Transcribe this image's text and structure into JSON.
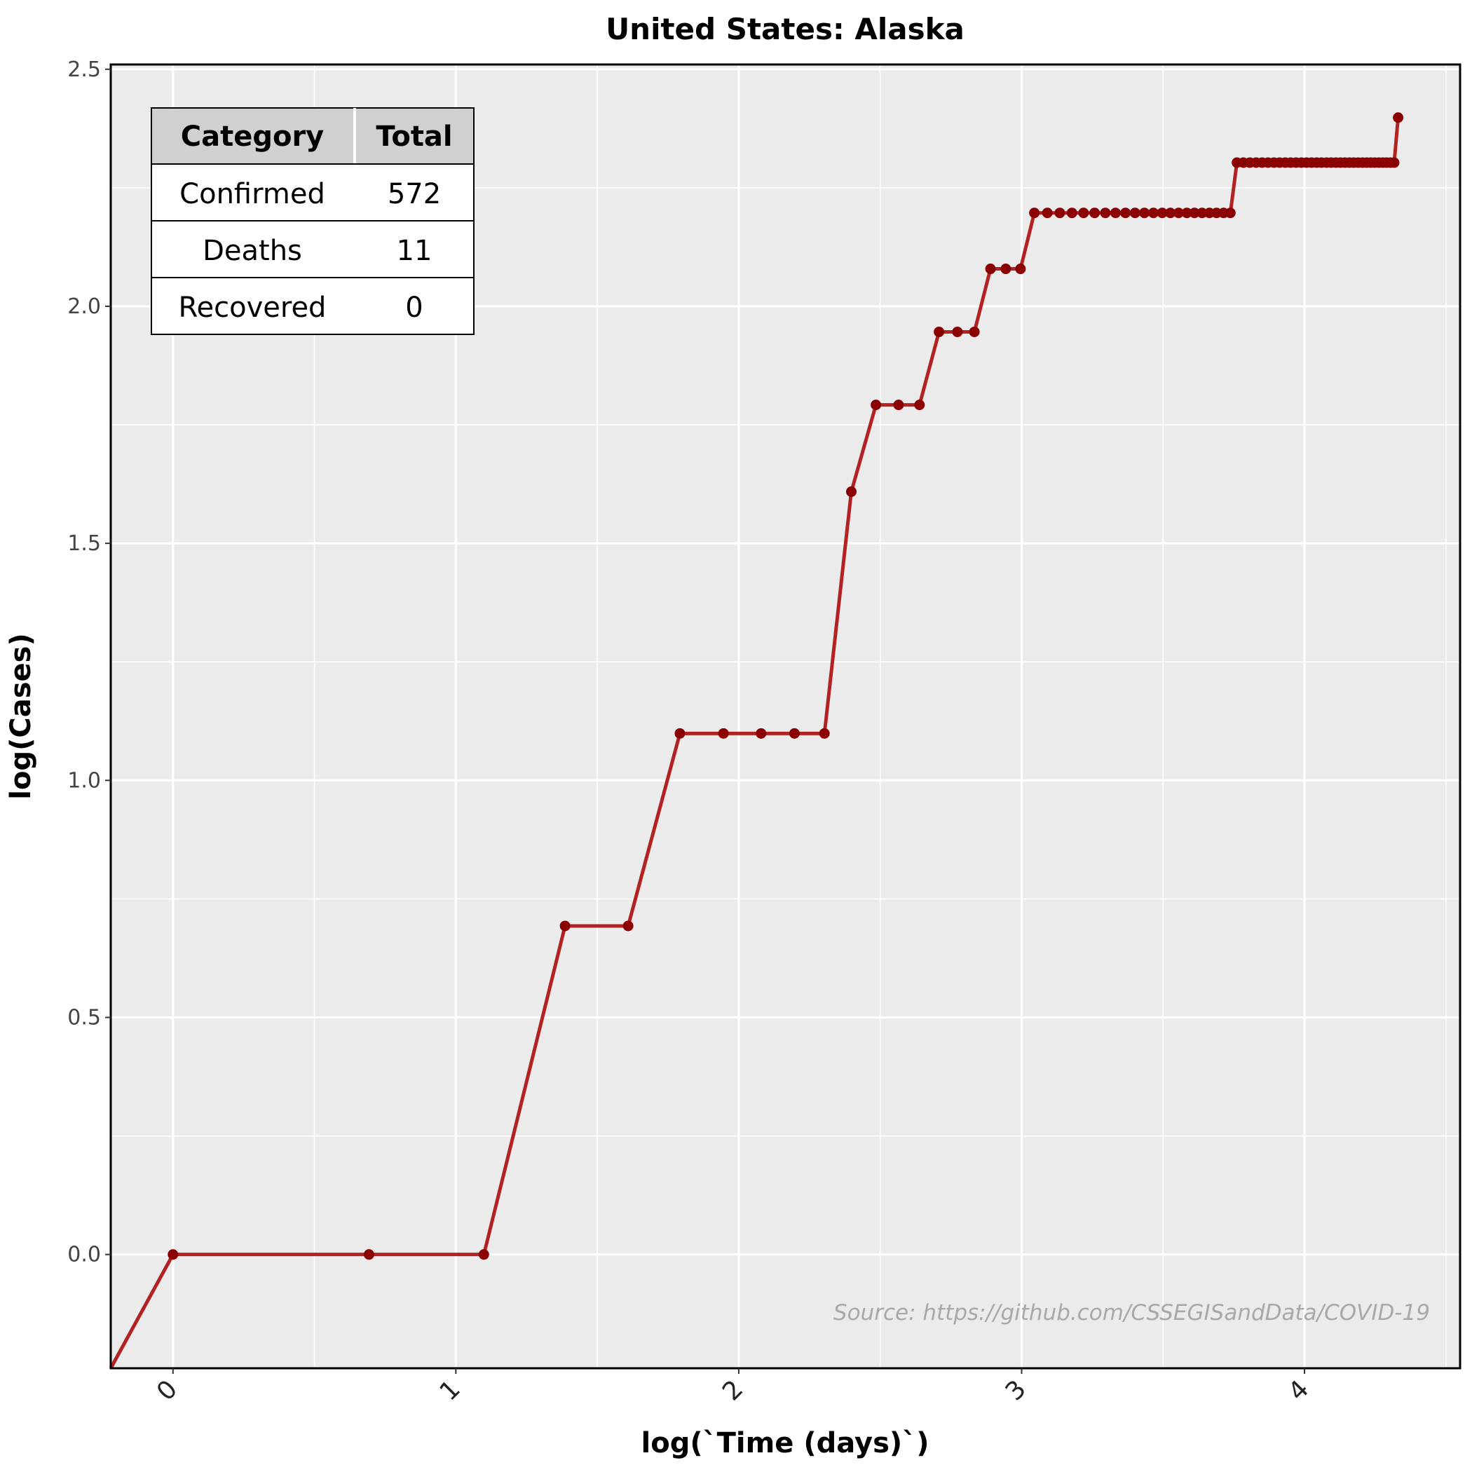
{
  "chart_data": {
    "type": "line",
    "title": "United States: Alaska",
    "xlabel": "log(`Time (days)`)",
    "ylabel": "log(Cases)",
    "xlim": [
      -0.22,
      4.55
    ],
    "ylim": [
      -0.24,
      2.51
    ],
    "xticks": [
      0,
      1,
      2,
      3,
      4
    ],
    "xtick_labels": [
      "0",
      "1",
      "2",
      "3",
      "4"
    ],
    "yticks": [
      0.0,
      0.5,
      1.0,
      1.5,
      2.0,
      2.5
    ],
    "ytick_labels": [
      "0.0",
      "0.5",
      "1.0",
      "1.5",
      "2.0",
      "2.5"
    ],
    "grid": true,
    "line_color": "#b22222",
    "point_color": "#8b0000",
    "background": "#ebebeb",
    "source": "Source: https://github.com/CSSEGISandData/COVID-19",
    "line_start": [
      -0.22,
      -0.24
    ],
    "series": [
      {
        "x": [
          0.0,
          0.693,
          1.099,
          1.386,
          1.609,
          1.792,
          1.946,
          2.079,
          2.197,
          2.303,
          2.398,
          2.485,
          2.565,
          2.639,
          2.708,
          2.773,
          2.833,
          2.89,
          2.944,
          2.996,
          3.045,
          3.091,
          3.135,
          3.178,
          3.219,
          3.258,
          3.296,
          3.332,
          3.367,
          3.401,
          3.434,
          3.466,
          3.497,
          3.526,
          3.555,
          3.584,
          3.611,
          3.638,
          3.664,
          3.689,
          3.714,
          3.738,
          3.761,
          3.784,
          3.807,
          3.829,
          3.85,
          3.871,
          3.892,
          3.912,
          3.932,
          3.951,
          3.97,
          3.989,
          4.007,
          4.025,
          4.043,
          4.06,
          4.078,
          4.094,
          4.111,
          4.127,
          4.143,
          4.159,
          4.174,
          4.19,
          4.205,
          4.22,
          4.234,
          4.248,
          4.263,
          4.277,
          4.29,
          4.304,
          4.317,
          4.331
        ],
        "y": [
          0.0,
          0.0,
          0.0,
          0.693,
          0.693,
          1.099,
          1.099,
          1.099,
          1.099,
          1.099,
          1.609,
          1.792,
          1.792,
          1.792,
          1.946,
          1.946,
          1.946,
          2.079,
          2.079,
          2.079,
          2.197,
          2.197,
          2.197,
          2.197,
          2.197,
          2.197,
          2.197,
          2.197,
          2.197,
          2.197,
          2.197,
          2.197,
          2.197,
          2.197,
          2.197,
          2.197,
          2.197,
          2.197,
          2.197,
          2.197,
          2.197,
          2.197,
          2.303,
          2.303,
          2.303,
          2.303,
          2.303,
          2.303,
          2.303,
          2.303,
          2.303,
          2.303,
          2.303,
          2.303,
          2.303,
          2.303,
          2.303,
          2.303,
          2.303,
          2.303,
          2.303,
          2.303,
          2.303,
          2.303,
          2.303,
          2.303,
          2.303,
          2.303,
          2.303,
          2.303,
          2.303,
          2.303,
          2.303,
          2.303,
          2.303,
          2.398
        ]
      }
    ]
  },
  "summary_table": {
    "headers": [
      "Category",
      "Total"
    ],
    "rows": [
      [
        "Confirmed",
        "572"
      ],
      [
        "Deaths",
        "11"
      ],
      [
        "Recovered",
        "0"
      ]
    ]
  }
}
